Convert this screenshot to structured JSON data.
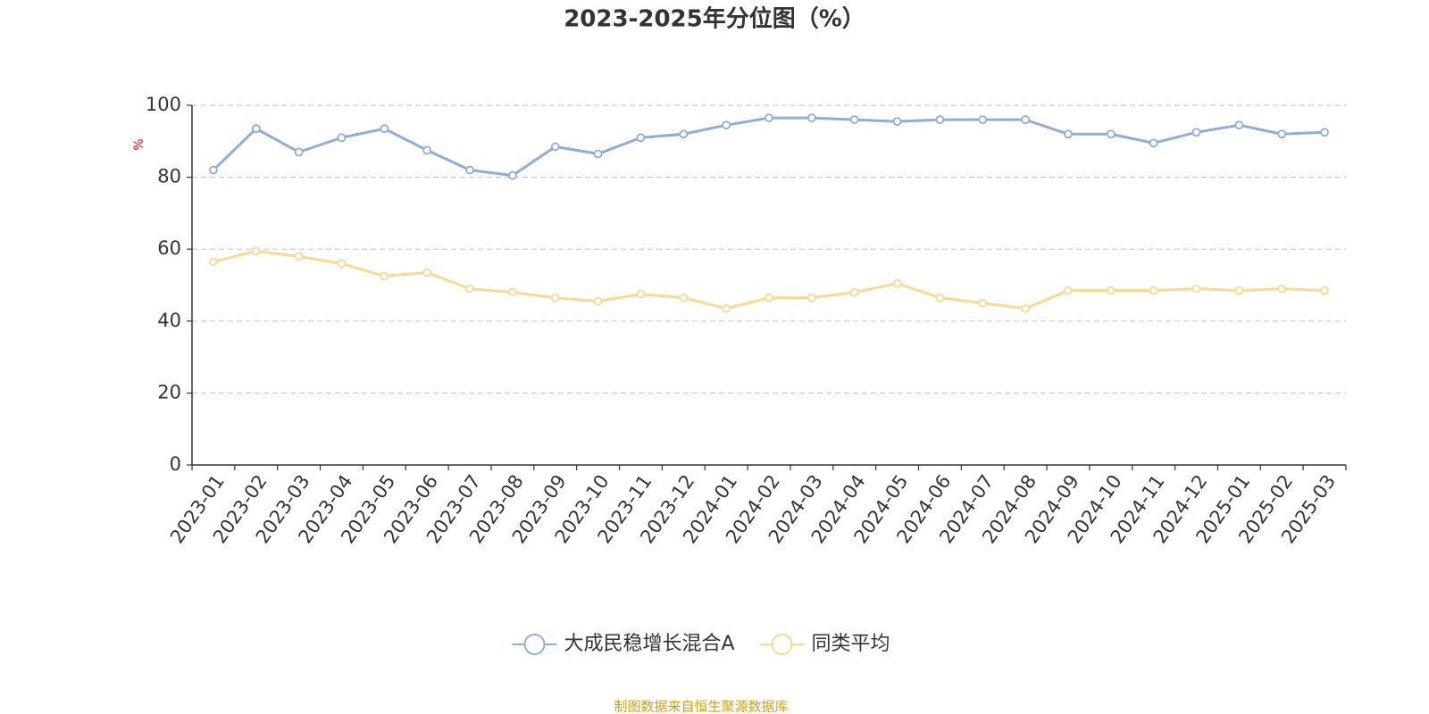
{
  "chart_data": {
    "type": "line",
    "title": "2023-2025年分位图（%）",
    "ylabel": "%",
    "xlabel": "",
    "ylim": [
      0,
      100
    ],
    "yticks": [
      0,
      20,
      40,
      60,
      80,
      100
    ],
    "grid": true,
    "legend_position": "bottom",
    "categories": [
      "2023-01",
      "2023-02",
      "2023-03",
      "2023-04",
      "2023-05",
      "2023-06",
      "2023-07",
      "2023-08",
      "2023-09",
      "2023-10",
      "2023-11",
      "2023-12",
      "2024-01",
      "2024-02",
      "2024-03",
      "2024-04",
      "2024-05",
      "2024-06",
      "2024-07",
      "2024-08",
      "2024-09",
      "2024-10",
      "2024-11",
      "2024-12",
      "2025-01",
      "2025-02",
      "2025-03"
    ],
    "series": [
      {
        "name": "大成民稳增长混合A",
        "color": "#8eaed9",
        "values": [
          82.0,
          93.5,
          87.0,
          91.0,
          93.5,
          87.5,
          82.0,
          80.5,
          88.5,
          86.5,
          91.0,
          92.0,
          94.5,
          96.5,
          96.5,
          96.0,
          95.5,
          96.0,
          96.0,
          96.0,
          92.0,
          92.0,
          89.5,
          92.5,
          94.5,
          92.0,
          92.5
        ]
      },
      {
        "name": "同类平均",
        "color": "#fcd893",
        "values": [
          56.5,
          59.5,
          58.0,
          56.0,
          52.5,
          53.5,
          49.0,
          48.0,
          46.5,
          45.5,
          47.5,
          46.5,
          43.5,
          46.5,
          46.5,
          48.0,
          50.5,
          46.5,
          45.0,
          43.5,
          48.5,
          48.5,
          48.5,
          49.0,
          48.5,
          49.0,
          48.5
        ]
      }
    ]
  },
  "source_text": "制图数据来自恒生聚源数据库",
  "colors": {
    "title": "#333333",
    "axis": "#333333",
    "grid": "#cccccc",
    "ylabel": "#ff0000",
    "source": "#d4a017"
  }
}
